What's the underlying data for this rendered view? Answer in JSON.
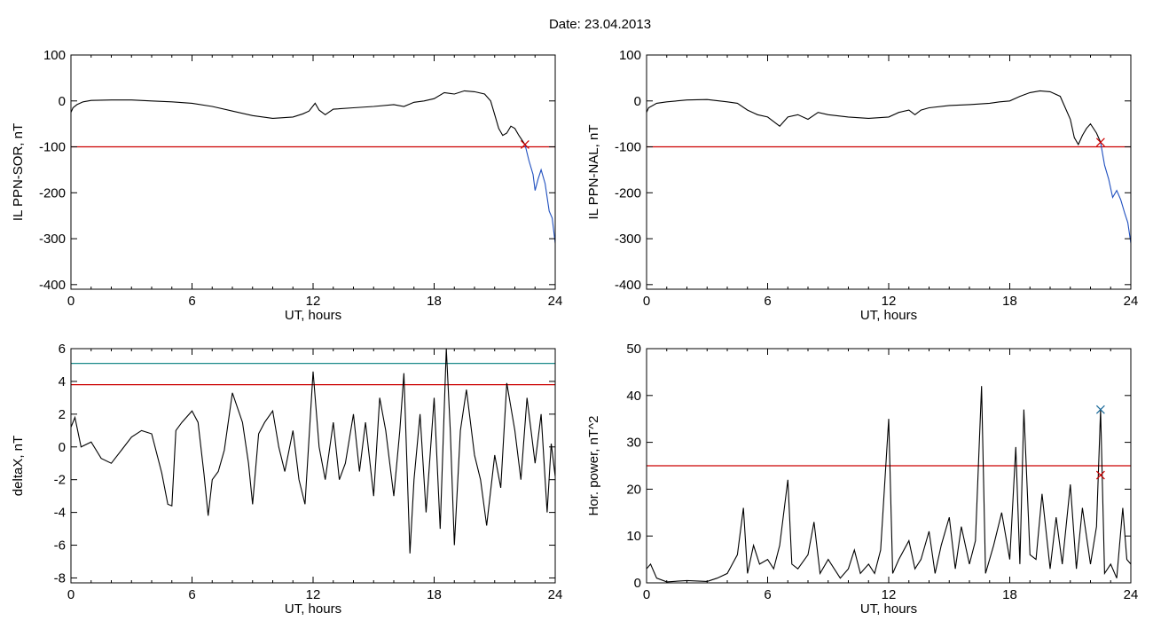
{
  "figure": {
    "date_label": "Date:  23.04.2013"
  },
  "chart_data": [
    {
      "type": "line",
      "ylabel": "IL PPN-SOR, nT",
      "xlabel": "UT, hours",
      "xlim": [
        0,
        24
      ],
      "ylim": [
        -410,
        100
      ],
      "xticks": [
        0,
        6,
        12,
        18,
        24
      ],
      "yticks": [
        100,
        0,
        -100,
        -200,
        -300,
        -400
      ],
      "threshold": {
        "value": -100,
        "color": "#cc0000"
      },
      "series": [
        {
          "color": "#000000",
          "points": [
            [
              0,
              -25
            ],
            [
              0.1,
              -15
            ],
            [
              0.3,
              -8
            ],
            [
              0.6,
              -2
            ],
            [
              1,
              1
            ],
            [
              2,
              2
            ],
            [
              3,
              2
            ],
            [
              4,
              0
            ],
            [
              5,
              -2
            ],
            [
              6,
              -5
            ],
            [
              7,
              -12
            ],
            [
              8,
              -22
            ],
            [
              9,
              -32
            ],
            [
              10,
              -38
            ],
            [
              11,
              -35
            ],
            [
              11.5,
              -28
            ],
            [
              11.8,
              -22
            ],
            [
              12.1,
              -5
            ],
            [
              12.3,
              -20
            ],
            [
              12.6,
              -30
            ],
            [
              13,
              -18
            ],
            [
              14,
              -15
            ],
            [
              15,
              -12
            ],
            [
              16,
              -8
            ],
            [
              16.5,
              -12
            ],
            [
              17,
              -3
            ],
            [
              17.5,
              0
            ],
            [
              18,
              5
            ],
            [
              18.5,
              18
            ],
            [
              19,
              15
            ],
            [
              19.5,
              22
            ],
            [
              20,
              20
            ],
            [
              20.5,
              15
            ],
            [
              20.8,
              0
            ],
            [
              21,
              -30
            ],
            [
              21.2,
              -60
            ],
            [
              21.4,
              -75
            ],
            [
              21.6,
              -70
            ],
            [
              21.8,
              -55
            ],
            [
              22,
              -60
            ],
            [
              22.2,
              -75
            ],
            [
              22.5,
              -95
            ]
          ]
        },
        {
          "color": "#1f4fbf",
          "points": [
            [
              22.5,
              -95
            ],
            [
              22.7,
              -130
            ],
            [
              22.9,
              -160
            ],
            [
              23,
              -195
            ],
            [
              23.15,
              -170
            ],
            [
              23.3,
              -150
            ],
            [
              23.5,
              -180
            ],
            [
              23.7,
              -240
            ],
            [
              23.85,
              -255
            ],
            [
              24,
              -310
            ]
          ]
        }
      ],
      "markers": [
        {
          "x": 22.5,
          "y": -95,
          "color": "#cc0000"
        }
      ]
    },
    {
      "type": "line",
      "ylabel": "IL PPN-NAL, nT",
      "xlabel": "UT, hours",
      "xlim": [
        0,
        24
      ],
      "ylim": [
        -410,
        100
      ],
      "xticks": [
        0,
        6,
        12,
        18,
        24
      ],
      "yticks": [
        100,
        0,
        -100,
        -200,
        -300,
        -400
      ],
      "threshold": {
        "value": -100,
        "color": "#cc0000"
      },
      "series": [
        {
          "color": "#000000",
          "points": [
            [
              0,
              -25
            ],
            [
              0.1,
              -15
            ],
            [
              0.5,
              -5
            ],
            [
              1,
              -2
            ],
            [
              2,
              2
            ],
            [
              3,
              3
            ],
            [
              4,
              -2
            ],
            [
              4.5,
              -5
            ],
            [
              5,
              -20
            ],
            [
              5.5,
              -30
            ],
            [
              6,
              -35
            ],
            [
              6.3,
              -45
            ],
            [
              6.6,
              -55
            ],
            [
              7,
              -35
            ],
            [
              7.5,
              -30
            ],
            [
              8,
              -40
            ],
            [
              8.5,
              -25
            ],
            [
              9,
              -30
            ],
            [
              10,
              -35
            ],
            [
              11,
              -38
            ],
            [
              12,
              -35
            ],
            [
              12.5,
              -25
            ],
            [
              13,
              -20
            ],
            [
              13.3,
              -30
            ],
            [
              13.6,
              -20
            ],
            [
              14,
              -15
            ],
            [
              15,
              -10
            ],
            [
              16,
              -8
            ],
            [
              17,
              -5
            ],
            [
              17.5,
              -2
            ],
            [
              18,
              0
            ],
            [
              18.5,
              10
            ],
            [
              19,
              18
            ],
            [
              19.5,
              22
            ],
            [
              20,
              20
            ],
            [
              20.5,
              10
            ],
            [
              21,
              -40
            ],
            [
              21.2,
              -80
            ],
            [
              21.4,
              -95
            ],
            [
              21.6,
              -75
            ],
            [
              21.8,
              -60
            ],
            [
              22,
              -50
            ],
            [
              22.3,
              -70
            ],
            [
              22.5,
              -90
            ]
          ]
        },
        {
          "color": "#1f4fbf",
          "points": [
            [
              22.5,
              -90
            ],
            [
              22.7,
              -140
            ],
            [
              22.9,
              -170
            ],
            [
              23.1,
              -210
            ],
            [
              23.3,
              -195
            ],
            [
              23.5,
              -215
            ],
            [
              23.7,
              -245
            ],
            [
              23.85,
              -265
            ],
            [
              24,
              -310
            ]
          ]
        }
      ],
      "markers": [
        {
          "x": 22.5,
          "y": -90,
          "color": "#cc0000"
        }
      ]
    },
    {
      "type": "line",
      "ylabel": "deltaX, nT",
      "xlabel": "UT, hours",
      "xlim": [
        0,
        24
      ],
      "ylim": [
        -8.3,
        6
      ],
      "xticks": [
        0,
        6,
        12,
        18,
        24
      ],
      "yticks": [
        6,
        4,
        2,
        0,
        -2,
        -4,
        -6,
        -8
      ],
      "thresholds": [
        {
          "value": 5.1,
          "color": "#1a8a8a"
        },
        {
          "value": 3.8,
          "color": "#cc0000"
        }
      ],
      "series": [
        {
          "color": "#000000",
          "points": [
            [
              0,
              1.2
            ],
            [
              0.2,
              1.8
            ],
            [
              0.5,
              0
            ],
            [
              1,
              0.3
            ],
            [
              1.5,
              -0.7
            ],
            [
              2,
              -1
            ],
            [
              2.5,
              -0.2
            ],
            [
              3,
              0.6
            ],
            [
              3.5,
              1
            ],
            [
              4,
              0.8
            ],
            [
              4.5,
              -1.6
            ],
            [
              4.8,
              -3.5
            ],
            [
              5,
              -3.6
            ],
            [
              5.2,
              1
            ],
            [
              5.5,
              1.5
            ],
            [
              6,
              2.2
            ],
            [
              6.3,
              1.5
            ],
            [
              6.6,
              -1.7
            ],
            [
              6.8,
              -4.2
            ],
            [
              7,
              -2
            ],
            [
              7.3,
              -1.5
            ],
            [
              7.6,
              -0.2
            ],
            [
              8,
              3.3
            ],
            [
              8.5,
              1.5
            ],
            [
              8.8,
              -1
            ],
            [
              9,
              -3.5
            ],
            [
              9.3,
              0.8
            ],
            [
              9.6,
              1.5
            ],
            [
              10,
              2.2
            ],
            [
              10.3,
              0
            ],
            [
              10.6,
              -1.5
            ],
            [
              11,
              1
            ],
            [
              11.3,
              -2
            ],
            [
              11.6,
              -3.5
            ],
            [
              12,
              4.6
            ],
            [
              12.3,
              0
            ],
            [
              12.6,
              -2
            ],
            [
              13,
              1.5
            ],
            [
              13.3,
              -2
            ],
            [
              13.6,
              -1
            ],
            [
              14,
              2
            ],
            [
              14.3,
              -1.5
            ],
            [
              14.6,
              1.5
            ],
            [
              15,
              -3
            ],
            [
              15.3,
              3
            ],
            [
              15.6,
              1
            ],
            [
              16,
              -3
            ],
            [
              16.3,
              1
            ],
            [
              16.5,
              4.5
            ],
            [
              16.8,
              -6.5
            ],
            [
              17,
              -2
            ],
            [
              17.3,
              2
            ],
            [
              17.6,
              -4
            ],
            [
              18,
              3
            ],
            [
              18.3,
              -5
            ],
            [
              18.6,
              6
            ],
            [
              18.8,
              1
            ],
            [
              19,
              -6
            ],
            [
              19.3,
              1
            ],
            [
              19.6,
              3.5
            ],
            [
              20,
              -0.5
            ],
            [
              20.3,
              -2
            ],
            [
              20.6,
              -4.8
            ],
            [
              21,
              -0.5
            ],
            [
              21.3,
              -2.5
            ],
            [
              21.6,
              3.9
            ],
            [
              22,
              1
            ],
            [
              22.3,
              -2
            ],
            [
              22.6,
              3
            ],
            [
              23,
              -1
            ],
            [
              23.3,
              2
            ],
            [
              23.6,
              -4
            ],
            [
              23.8,
              0.2
            ],
            [
              24,
              -1.8
            ]
          ]
        }
      ]
    },
    {
      "type": "line",
      "ylabel": "Hor. power, nT^2",
      "xlabel": "UT, hours",
      "xlim": [
        0,
        24
      ],
      "ylim": [
        0,
        50
      ],
      "xticks": [
        0,
        6,
        12,
        18,
        24
      ],
      "yticks": [
        50,
        40,
        30,
        20,
        10,
        0
      ],
      "threshold": {
        "value": 25,
        "color": "#cc0000"
      },
      "series": [
        {
          "color": "#000000",
          "points": [
            [
              0,
              3
            ],
            [
              0.2,
              4
            ],
            [
              0.5,
              1
            ],
            [
              1,
              0.2
            ],
            [
              2,
              0.5
            ],
            [
              3,
              0.3
            ],
            [
              3.5,
              1
            ],
            [
              4,
              2
            ],
            [
              4.5,
              6
            ],
            [
              4.8,
              16
            ],
            [
              5,
              2
            ],
            [
              5.3,
              8
            ],
            [
              5.6,
              4
            ],
            [
              6,
              5
            ],
            [
              6.3,
              3
            ],
            [
              6.6,
              8
            ],
            [
              7,
              22
            ],
            [
              7.2,
              4
            ],
            [
              7.5,
              3
            ],
            [
              8,
              6
            ],
            [
              8.3,
              13
            ],
            [
              8.6,
              2
            ],
            [
              9,
              5
            ],
            [
              9.3,
              3
            ],
            [
              9.6,
              1
            ],
            [
              10,
              3
            ],
            [
              10.3,
              7
            ],
            [
              10.6,
              2
            ],
            [
              11,
              4
            ],
            [
              11.3,
              2
            ],
            [
              11.6,
              7
            ],
            [
              12,
              35
            ],
            [
              12.2,
              2
            ],
            [
              12.5,
              5
            ],
            [
              13,
              9
            ],
            [
              13.3,
              3
            ],
            [
              13.6,
              5
            ],
            [
              14,
              11
            ],
            [
              14.3,
              2
            ],
            [
              14.6,
              8
            ],
            [
              15,
              14
            ],
            [
              15.3,
              3
            ],
            [
              15.6,
              12
            ],
            [
              16,
              4
            ],
            [
              16.3,
              9
            ],
            [
              16.6,
              42
            ],
            [
              16.8,
              2
            ],
            [
              17.2,
              8
            ],
            [
              17.6,
              15
            ],
            [
              18,
              5
            ],
            [
              18.3,
              29
            ],
            [
              18.5,
              4
            ],
            [
              18.7,
              37
            ],
            [
              19,
              6
            ],
            [
              19.3,
              5
            ],
            [
              19.6,
              19
            ],
            [
              20,
              3
            ],
            [
              20.3,
              14
            ],
            [
              20.6,
              4
            ],
            [
              21,
              21
            ],
            [
              21.3,
              3
            ],
            [
              21.6,
              16
            ],
            [
              22,
              4
            ],
            [
              22.3,
              12
            ],
            [
              22.5,
              37
            ],
            [
              22.7,
              2
            ],
            [
              23,
              4
            ],
            [
              23.3,
              1
            ],
            [
              23.6,
              16
            ],
            [
              23.8,
              5
            ],
            [
              24,
              4
            ]
          ]
        }
      ],
      "markers": [
        {
          "x": 22.5,
          "y": 37,
          "color": "#1a6a9a"
        },
        {
          "x": 22.5,
          "y": 23,
          "color": "#cc0000"
        }
      ]
    }
  ]
}
